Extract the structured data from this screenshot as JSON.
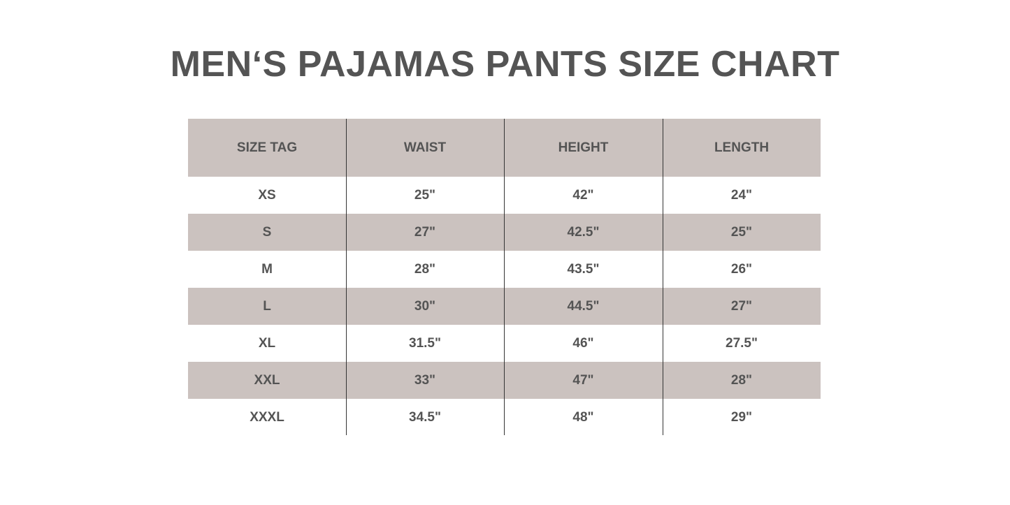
{
  "title": "MEN‘S PAJAMAS PANTS SIZE CHART",
  "colors": {
    "shade": "#cbc2bf",
    "text": "#545454"
  },
  "table": {
    "headers": [
      "SIZE TAG",
      "WAIST",
      "HEIGHT",
      "LENGTH"
    ],
    "rows": [
      [
        "XS",
        "25\"",
        "42\"",
        "24\""
      ],
      [
        "S",
        "27\"",
        "42.5\"",
        "25\""
      ],
      [
        "M",
        "28\"",
        "43.5\"",
        "26\""
      ],
      [
        "L",
        "30\"",
        "44.5\"",
        "27\""
      ],
      [
        "XL",
        "31.5\"",
        "46\"",
        "27.5\""
      ],
      [
        "XXL",
        "33\"",
        "47\"",
        "28\""
      ],
      [
        "XXXL",
        "34.5\"",
        "48\"",
        "29\""
      ]
    ]
  }
}
